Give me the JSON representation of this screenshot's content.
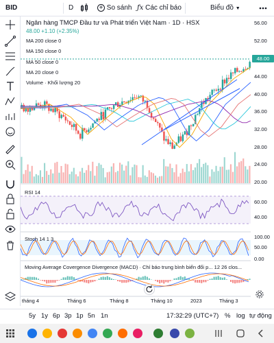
{
  "toolbar": {
    "symbol": "BID",
    "interval": "D",
    "compare_label": "So sánh",
    "indicators_label": "Các chỉ báo",
    "chart_type_label": "Biểu đồ"
  },
  "legend": {
    "title": "Ngân hàng TMCP Đầu tư và Phát triển Việt Nam · 1D · HSX",
    "price_line": "48.00 +1.10 (+2.35%)",
    "ma200": "MA 200 close 0",
    "ma150": "MA 150 close 0",
    "ma50": "MA 50 close 0",
    "ma20": "MA 20 close 0",
    "volume": "Volume · Khối lượng 20"
  },
  "panes": {
    "rsi": "RSI 14",
    "stoch": "Stoch 14 1 3",
    "macd": "Moving Average Covergence Divergence (MACD) · Chỉ báo trung bình biến đổi p... 12 26 clos..."
  },
  "price_scale": {
    "labels": [
      "56.00",
      "52.00",
      "48.00",
      "44.00",
      "40.00",
      "36.00",
      "32.00",
      "28.00",
      "24.00",
      "20.00"
    ],
    "current": "48.00",
    "rsi_labels": [
      "60.00",
      "40.00"
    ],
    "stoch_labels": [
      "100.00",
      "50.00",
      "0.00"
    ]
  },
  "time_axis": [
    "tháng 4",
    "Tháng 6",
    "Tháng 8",
    "Tháng 10",
    "2023",
    "Tháng 3"
  ],
  "range_bar": {
    "ranges": [
      "5y",
      "1y",
      "6p",
      "3p",
      "1p",
      "5n",
      "1n"
    ],
    "clock": "17:32:29 (UTC+7)",
    "percent": "%",
    "log": "log",
    "auto": "tự động"
  },
  "colors": {
    "up": "#26a69a",
    "down": "#ef5350",
    "rsi": "#7e57c2",
    "stoch_k": "#2962ff",
    "stoch_d": "#ff6d00"
  }
}
